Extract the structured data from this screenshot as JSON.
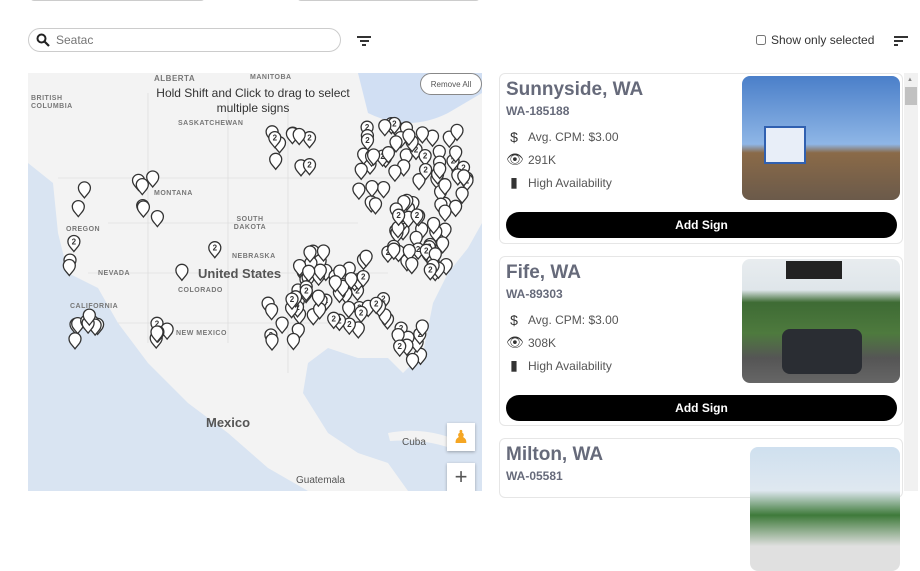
{
  "search": {
    "placeholder": "Seatac",
    "value": ""
  },
  "filter_icon": "filter-icon",
  "show_only_selected": {
    "label": "Show only selected",
    "checked": false
  },
  "sort_icon": "sort-icon",
  "map": {
    "hint": "Hold Shift and Click to drag to select multiple signs",
    "remove_all": "Remove All",
    "labels": {
      "alberta": "ALBERTA",
      "manitoba": "MANITOBA",
      "bc": "BRITISH COLUMBIA",
      "sask": "SASKATCHEWAN",
      "montana": "MONTANA",
      "oregon": "OREGON",
      "sdakota": "SOUTH DAKOTA",
      "nebraska": "NEBRASKA",
      "nevada": "NEVADA",
      "california": "CALIFORNIA",
      "colorado": "COLORADO",
      "newmexico": "NEW MEXICO",
      "us": "United States",
      "mexico": "Mexico",
      "cuba": "Cuba",
      "guatemala": "Guatemala"
    },
    "cluster_label": "2"
  },
  "cards": [
    {
      "title": "Sunnyside, WA",
      "id": "WA-185188",
      "cpm": "Avg. CPM: $3.00",
      "impressions": "291K",
      "availability": "High Availability",
      "button": "Add Sign"
    },
    {
      "title": "Fife, WA",
      "id": "WA-89303",
      "cpm": "Avg. CPM: $3.00",
      "impressions": "308K",
      "availability": "High Availability",
      "button": "Add Sign"
    },
    {
      "title": "Milton, WA",
      "id": "WA-05581"
    }
  ]
}
